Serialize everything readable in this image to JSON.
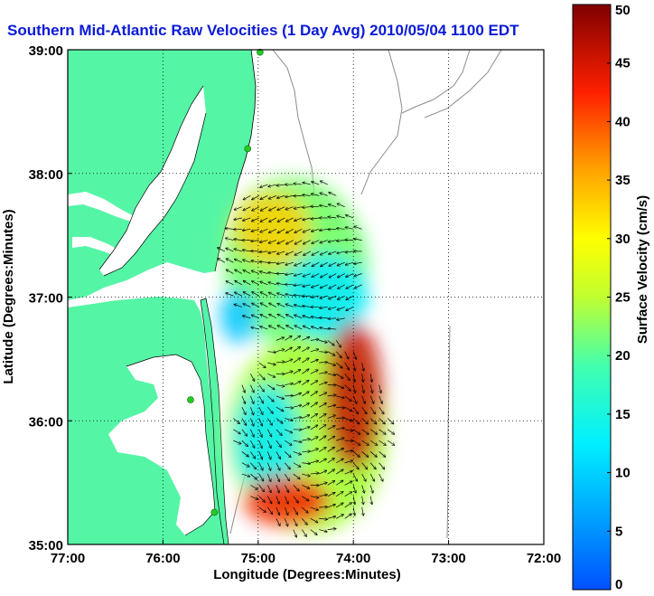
{
  "title": "Southern Mid-Atlantic Raw Velocities (1 Day Avg) 2010/05/04 1100 EDT",
  "colors": {
    "land": "#55f5a6",
    "coast_line": "#000000",
    "bathymetry": "#8c8c8c",
    "station": "#22cc22",
    "title": "#0a1ad6"
  },
  "chart_data": {
    "type": "map",
    "xlabel": "Longitude (Degrees:Minutes)",
    "ylabel": "Latitude (Degrees:Minutes)",
    "xlim": [
      -77,
      -72
    ],
    "ylim": [
      35,
      39
    ],
    "x_ticks": [
      -77,
      -76,
      -75,
      -74,
      -73,
      -72
    ],
    "x_tick_labels": [
      "77:00",
      "76:00",
      "75:00",
      "74:00",
      "73:00",
      "72:00"
    ],
    "y_ticks": [
      35,
      36,
      37,
      38,
      39
    ],
    "y_tick_labels": [
      "35:00",
      "36:00",
      "37:00",
      "38:00",
      "39:00"
    ],
    "grid": "dotted",
    "colorbar": {
      "label": "Surface Velocity (cm/s)",
      "min": 0,
      "max": 50,
      "ticks": [
        0,
        5,
        10,
        15,
        20,
        25,
        30,
        35,
        40,
        45,
        50
      ],
      "tick_labels": [
        "0",
        "5",
        "10",
        "15",
        "20",
        "25",
        "30",
        "35",
        "40",
        "45",
        "50"
      ],
      "colormap": "jet"
    },
    "stations": [
      {
        "lon": -74.98,
        "lat": 38.98
      },
      {
        "lon": -75.11,
        "lat": 38.2
      },
      {
        "lon": -75.71,
        "lat": 36.17
      },
      {
        "lon": -75.46,
        "lat": 35.26
      }
    ],
    "current_regions": [
      {
        "lon": -74.65,
        "lat": 37.35,
        "rx": 0.72,
        "ry": 0.62,
        "speed": 22
      },
      {
        "lon": -74.3,
        "lat": 37.0,
        "rx": 0.45,
        "ry": 0.35,
        "speed": 12
      },
      {
        "lon": -74.85,
        "lat": 37.55,
        "rx": 0.4,
        "ry": 0.3,
        "speed": 33
      },
      {
        "lon": -74.55,
        "lat": 35.9,
        "rx": 0.78,
        "ry": 0.75,
        "speed": 24
      },
      {
        "lon": -74.9,
        "lat": 35.85,
        "rx": 0.35,
        "ry": 0.45,
        "speed": 12
      },
      {
        "lon": -74.0,
        "lat": 36.2,
        "rx": 0.3,
        "ry": 0.6,
        "speed": 46
      },
      {
        "lon": -74.7,
        "lat": 35.35,
        "rx": 0.45,
        "ry": 0.2,
        "speed": 43
      },
      {
        "lon": -75.2,
        "lat": 36.85,
        "rx": 0.2,
        "ry": 0.22,
        "speed": 9
      }
    ]
  }
}
